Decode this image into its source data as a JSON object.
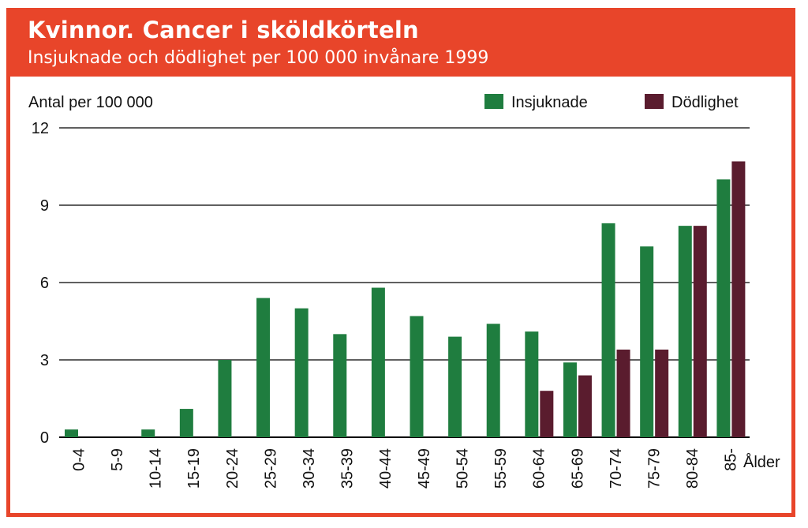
{
  "header": {
    "title": "Kvinnor. Cancer i sköldkörteln",
    "subtitle": "Insjuknade och dödlighet per 100 000 invånare 1999"
  },
  "colors": {
    "frame": "#e8452a",
    "insjuknade": "#1f7d3f",
    "dodlighet": "#5a1c2e",
    "grid": "#000000"
  },
  "chart_data": {
    "type": "bar",
    "title": "Kvinnor. Cancer i sköldkörteln",
    "subtitle": "Insjuknade och dödlighet per 100 000 invånare 1999",
    "ylabel": "Antal per 100 000",
    "xlabel": "Ålder",
    "ylim": [
      0,
      12
    ],
    "yticks": [
      0,
      3,
      6,
      9,
      12
    ],
    "grid": true,
    "legend_position": "top-right",
    "categories": [
      "0-4",
      "5-9",
      "10-14",
      "15-19",
      "20-24",
      "25-29",
      "30-34",
      "35-39",
      "40-44",
      "45-49",
      "50-54",
      "55-59",
      "60-64",
      "65-69",
      "70-74",
      "75-79",
      "80-84",
      "85-"
    ],
    "series": [
      {
        "name": "Insjuknade",
        "values": [
          0.3,
          0,
          0.3,
          1.1,
          3.0,
          5.4,
          5.0,
          4.0,
          5.8,
          4.7,
          3.9,
          4.4,
          4.1,
          2.9,
          8.3,
          7.4,
          8.2,
          10.0
        ]
      },
      {
        "name": "Dödlighet",
        "values": [
          0,
          0,
          0,
          0,
          0,
          0,
          0,
          0,
          0,
          0,
          0,
          0,
          1.8,
          2.4,
          3.4,
          3.4,
          8.2,
          10.7
        ]
      }
    ]
  }
}
